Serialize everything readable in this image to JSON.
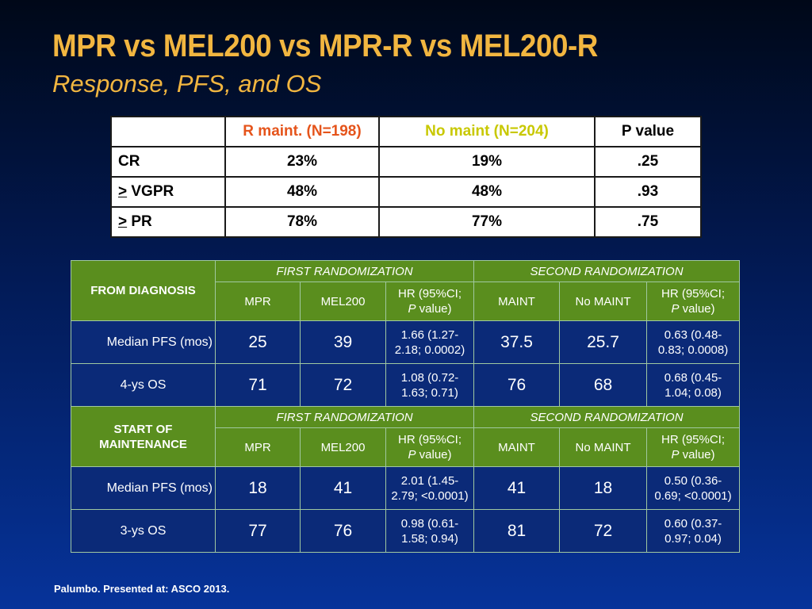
{
  "title": "MPR vs MEL200 vs MPR-R vs MEL200-R",
  "subtitle": "Response, PFS, and OS",
  "response_table": {
    "headers": [
      "",
      "R maint. (N=198)",
      "No maint (N=204)",
      "P value"
    ],
    "rows": [
      {
        "prefix": "",
        "label": "CR",
        "r_maint": "23%",
        "no_maint": "19%",
        "p": ".25"
      },
      {
        "prefix": ">",
        "label": " VGPR",
        "r_maint": "48%",
        "no_maint": "48%",
        "p": ".93"
      },
      {
        "prefix": ">",
        "label": " PR",
        "r_maint": "78%",
        "no_maint": "77%",
        "p": ".75"
      }
    ],
    "colors": {
      "r_maint": "#e5541b",
      "no_maint": "#c8c800"
    }
  },
  "outcome_table": {
    "colors": {
      "section": "#5a8e1e",
      "data": "#0b2a78"
    },
    "sections": [
      {
        "label": "FROM DIAGNOSIS",
        "first_randomization": "FIRST RANDOMIZATION",
        "second_randomization": "SECOND RANDOMIZATION",
        "columns": {
          "c1": "MPR",
          "c2": "MEL200",
          "hr_a": "HR (95%CI;",
          "hr_p": "P",
          "hr_b": " value)",
          "c4": "MAINT",
          "c5": "No MAINT"
        },
        "rows": [
          {
            "label": "Median PFS (mos)",
            "v1": "25",
            "v2": "39",
            "hr1a": "1.66 (1.27-",
            "hr1b": "2.18; 0.0002)",
            "v4": "37.5",
            "v5": "25.7",
            "hr2a": "0.63 (0.48-",
            "hr2b": "0.83; 0.0008)"
          },
          {
            "label": "4-ys OS",
            "v1": "71",
            "v2": "72",
            "hr1a": "1.08 (0.72-",
            "hr1b": "1.63; 0.71)",
            "v4": "76",
            "v5": "68",
            "hr2a": "0.68 (0.45-",
            "hr2b": "1.04; 0.08)"
          }
        ]
      },
      {
        "label_a": "START OF",
        "label_b": "MAINTENANCE",
        "first_randomization": "FIRST RANDOMIZATION",
        "second_randomization": "SECOND RANDOMIZATION",
        "columns": {
          "c1": "MPR",
          "c2": "MEL200",
          "hr_a": "HR (95%CI;",
          "hr_p": "P",
          "hr_b": " value)",
          "c4": "MAINT",
          "c5": "No MAINT"
        },
        "rows": [
          {
            "label": "Median PFS (mos)",
            "v1": "18",
            "v2": "41",
            "hr1a": "2.01 (1.45-",
            "hr1b": "2.79; <0.0001)",
            "v4": "41",
            "v5": "18",
            "hr2a": "0.50 (0.36-",
            "hr2b": "0.69; <0.0001)"
          },
          {
            "label": "3-ys OS",
            "v1": "77",
            "v2": "76",
            "hr1a": "0.98 (0.61-",
            "hr1b": "1.58; 0.94)",
            "v4": "81",
            "v5": "72",
            "hr2a": "0.60 (0.37-",
            "hr2b": "0.97; 0.04)"
          }
        ]
      }
    ]
  },
  "footer": "Palumbo. Presented at: ASCO 2013."
}
